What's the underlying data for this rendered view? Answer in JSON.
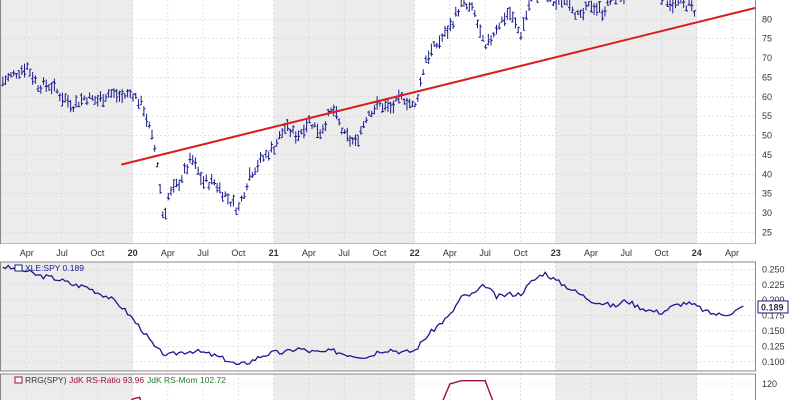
{
  "chart_data": [
    {
      "type": "ohlc",
      "symbol": "XLE",
      "x_labels": [
        "Apr",
        "Jul",
        "Oct",
        "20",
        "Apr",
        "Jul",
        "Oct",
        "21",
        "Apr",
        "Jul",
        "Oct",
        "22",
        "Apr",
        "Jul",
        "Oct",
        "23",
        "Apr",
        "Jul",
        "Oct",
        "24",
        "Apr"
      ],
      "x_labels_bold": [
        "20",
        "21",
        "22",
        "23",
        "24"
      ],
      "y_ticks": [
        25,
        30,
        35,
        40,
        45,
        50,
        55,
        60,
        65,
        70,
        75,
        80
      ],
      "ylim": [
        22,
        85
      ],
      "xlim": [
        2019.06,
        2024.42
      ],
      "grid": true,
      "series": [
        {
          "name": "",
          "x": [
            2019.08,
            2019.17,
            2019.25,
            2019.33,
            2019.42,
            2019.5,
            2019.58,
            2019.67,
            2019.75,
            2019.83,
            2019.92,
            2020.0,
            2020.08,
            2020.17,
            2020.22,
            2020.25,
            2020.33,
            2020.42,
            2020.5,
            2020.58,
            2020.67,
            2020.75,
            2020.83,
            2020.92,
            2021.0,
            2021.08,
            2021.17,
            2021.25,
            2021.33,
            2021.42,
            2021.5,
            2021.58,
            2021.67,
            2021.75,
            2021.83,
            2021.92,
            2022.0,
            2022.08,
            2022.17,
            2022.25,
            2022.33,
            2022.42,
            2022.5,
            2022.58,
            2022.67,
            2022.75,
            2022.83,
            2022.92,
            2023.0,
            2023.08,
            2023.17,
            2023.25,
            2023.33,
            2023.42,
            2023.5,
            2023.58,
            2023.67,
            2023.75,
            2023.83,
            2023.92,
            2024.0
          ],
          "y": [
            64,
            66,
            68,
            63,
            63,
            60,
            58,
            60,
            59,
            61,
            60,
            61,
            57,
            45,
            28,
            34,
            38,
            44,
            38,
            38,
            34,
            31,
            40,
            44,
            47,
            52,
            50,
            54,
            51,
            57,
            50,
            48,
            56,
            58,
            57,
            60,
            57,
            70,
            74,
            78,
            84,
            82,
            72,
            78,
            82,
            76,
            86,
            86,
            84,
            86,
            80,
            84,
            82,
            86,
            86,
            88,
            88,
            86,
            84,
            84,
            82
          ]
        },
        {
          "name": "trendline",
          "x": [
            2019.92,
            2024.42
          ],
          "y": [
            42.5,
            83
          ]
        }
      ]
    },
    {
      "type": "line",
      "title": "XLE:SPY 0.189",
      "y_ticks": [
        0.1,
        0.125,
        0.15,
        0.175,
        0.2,
        0.225,
        0.25
      ],
      "ylim": [
        0.085,
        0.262
      ],
      "current_value": "0.189",
      "series": [
        {
          "name": "XLE:SPY",
          "x": [
            2019.08,
            2019.17,
            2019.25,
            2019.33,
            2019.42,
            2019.5,
            2019.58,
            2019.67,
            2019.75,
            2019.83,
            2019.92,
            2020.0,
            2020.08,
            2020.17,
            2020.25,
            2020.33,
            2020.42,
            2020.5,
            2020.58,
            2020.67,
            2020.75,
            2020.83,
            2020.92,
            2021.0,
            2021.08,
            2021.17,
            2021.25,
            2021.33,
            2021.42,
            2021.5,
            2021.58,
            2021.67,
            2021.75,
            2021.83,
            2021.92,
            2022.0,
            2022.08,
            2022.17,
            2022.25,
            2022.33,
            2022.42,
            2022.5,
            2022.58,
            2022.67,
            2022.75,
            2022.83,
            2022.92,
            2023.0,
            2023.08,
            2023.17,
            2023.25,
            2023.33,
            2023.42,
            2023.5,
            2023.58,
            2023.67,
            2023.75,
            2023.83,
            2023.92,
            2024.0,
            2024.08,
            2024.17,
            2024.25,
            2024.33
          ],
          "y": [
            0.255,
            0.25,
            0.247,
            0.24,
            0.237,
            0.232,
            0.225,
            0.222,
            0.213,
            0.205,
            0.19,
            0.17,
            0.148,
            0.12,
            0.11,
            0.115,
            0.118,
            0.115,
            0.11,
            0.103,
            0.094,
            0.1,
            0.11,
            0.115,
            0.115,
            0.122,
            0.117,
            0.115,
            0.118,
            0.113,
            0.11,
            0.108,
            0.118,
            0.12,
            0.115,
            0.118,
            0.14,
            0.16,
            0.175,
            0.205,
            0.21,
            0.225,
            0.205,
            0.21,
            0.21,
            0.23,
            0.245,
            0.232,
            0.222,
            0.21,
            0.2,
            0.195,
            0.19,
            0.2,
            0.19,
            0.183,
            0.18,
            0.19,
            0.196,
            0.19,
            0.18,
            0.176,
            0.18,
            0.189
          ]
        }
      ]
    },
    {
      "type": "line",
      "legend": {
        "label": "RRG(SPY)",
        "ratio": "JdK RS-Ratio 93.96",
        "mom": "JdK RS-Mom 102.72"
      },
      "y_ticks": [
        120
      ],
      "ylim": [
        108,
        126
      ],
      "series": [
        {
          "name": "JdK RS-Ratio",
          "x": [
            2019.92,
            2020.0,
            2020.05,
            2020.08
          ],
          "y": [
            104,
            111,
            112,
            104
          ]
        },
        {
          "name": "JdK RS-Ratio",
          "x": [
            2022.17,
            2022.25,
            2022.33,
            2022.42,
            2022.5,
            2022.58
          ],
          "y": [
            104,
            120,
            122,
            122,
            122,
            104
          ]
        }
      ]
    }
  ],
  "colors": {
    "bars": "#1a1a8c",
    "trendline": "#d62020",
    "ratio_line": "#9b1030",
    "mom_text": "#2a7a2a",
    "band": "#ececec",
    "grid": "#cfcfcf",
    "current_value_box": "#1a1a8c"
  }
}
